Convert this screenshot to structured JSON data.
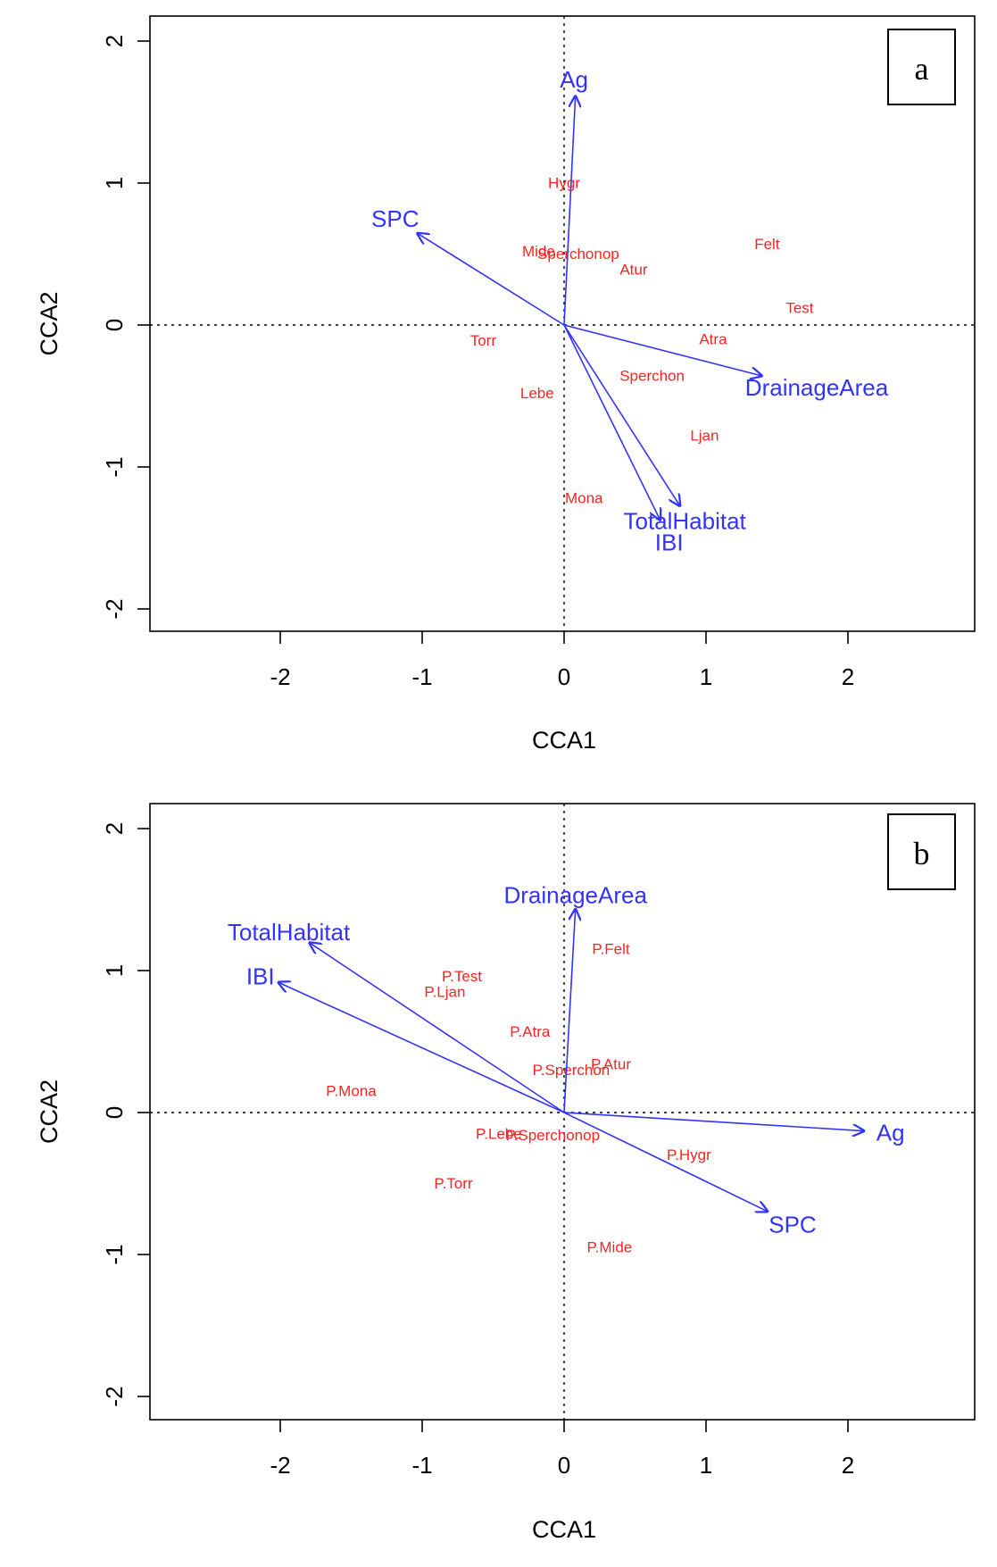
{
  "figure": {
    "background": "#ffffff"
  },
  "colors": {
    "species": "#ff2222",
    "vectors": "#3333ff",
    "axes": "#000000"
  },
  "chart_data": [
    {
      "type": "scatter",
      "subtype": "cca-biplot",
      "panel_label": "a",
      "xlabel": "CCA1",
      "ylabel": "CCA2",
      "xticks": [
        -2,
        -1,
        0,
        1,
        2
      ],
      "yticks": [
        -2,
        -1,
        0,
        1,
        2
      ],
      "xlim": [
        -2.9,
        2.9
      ],
      "ylim": [
        -2.2,
        2.2
      ],
      "zero_lines": true,
      "species": [
        {
          "label": "Hygr",
          "x": 0.0,
          "y": 1.0
        },
        {
          "label": "Mide",
          "x": -0.18,
          "y": 0.52
        },
        {
          "label": "Sperchonop",
          "x": 0.1,
          "y": 0.5
        },
        {
          "label": "Atur",
          "x": 0.49,
          "y": 0.39
        },
        {
          "label": "Felt",
          "x": 1.43,
          "y": 0.57
        },
        {
          "label": "Test",
          "x": 1.66,
          "y": 0.12
        },
        {
          "label": "Torr",
          "x": -0.57,
          "y": -0.11
        },
        {
          "label": "Atra",
          "x": 1.05,
          "y": -0.1
        },
        {
          "label": "Sperchon",
          "x": 0.62,
          "y": -0.36
        },
        {
          "label": "Lebe",
          "x": -0.19,
          "y": -0.48
        },
        {
          "label": "Ljan",
          "x": 0.99,
          "y": -0.78
        },
        {
          "label": "Mona",
          "x": 0.14,
          "y": -1.22
        }
      ],
      "vectors": [
        {
          "label": "Ag",
          "x": 0.08,
          "y": 1.62,
          "lx": 0.07,
          "ly": 1.73
        },
        {
          "label": "SPC",
          "x": -1.04,
          "y": 0.65,
          "lx": -1.19,
          "ly": 0.75
        },
        {
          "label": "DrainageArea",
          "x": 1.4,
          "y": -0.36,
          "lx": 1.78,
          "ly": -0.44
        },
        {
          "label": "TotalHabitat",
          "x": 0.82,
          "y": -1.28,
          "lx": 0.85,
          "ly": -1.38
        },
        {
          "label": "IBI",
          "x": 0.68,
          "y": -1.38,
          "lx": 0.74,
          "ly": -1.53
        }
      ]
    },
    {
      "type": "scatter",
      "subtype": "cca-biplot",
      "panel_label": "b",
      "xlabel": "CCA1",
      "ylabel": "CCA2",
      "xticks": [
        -2,
        -1,
        0,
        1,
        2
      ],
      "yticks": [
        -2,
        -1,
        0,
        1,
        2
      ],
      "xlim": [
        -2.9,
        2.9
      ],
      "ylim": [
        -2.2,
        2.2
      ],
      "zero_lines": true,
      "species": [
        {
          "label": "P.Felt",
          "x": 0.33,
          "y": 1.15
        },
        {
          "label": "P.Test",
          "x": -0.72,
          "y": 0.96
        },
        {
          "label": "P.Ljan",
          "x": -0.84,
          "y": 0.85
        },
        {
          "label": "P.Atra",
          "x": -0.24,
          "y": 0.57
        },
        {
          "label": "P.Atur",
          "x": 0.33,
          "y": 0.34
        },
        {
          "label": "P.Sperchon",
          "x": 0.05,
          "y": 0.3
        },
        {
          "label": "P.Mona",
          "x": -1.5,
          "y": 0.15
        },
        {
          "label": "P.Lebe",
          "x": -0.46,
          "y": -0.15
        },
        {
          "label": "P.Sperchonop",
          "x": -0.08,
          "y": -0.16
        },
        {
          "label": "P.Hygr",
          "x": 0.88,
          "y": -0.3
        },
        {
          "label": "P.Torr",
          "x": -0.78,
          "y": -0.5
        },
        {
          "label": "P.Mide",
          "x": 0.32,
          "y": -0.95
        }
      ],
      "vectors": [
        {
          "label": "DrainageArea",
          "x": 0.08,
          "y": 1.44,
          "lx": 0.08,
          "ly": 1.53
        },
        {
          "label": "TotalHabitat",
          "x": -1.8,
          "y": 1.2,
          "lx": -1.94,
          "ly": 1.27
        },
        {
          "label": "IBI",
          "x": -2.02,
          "y": 0.92,
          "lx": -2.14,
          "ly": 0.96
        },
        {
          "label": "Ag",
          "x": 2.12,
          "y": -0.13,
          "lx": 2.3,
          "ly": -0.14
        },
        {
          "label": "SPC",
          "x": 1.44,
          "y": -0.7,
          "lx": 1.61,
          "ly": -0.79
        }
      ]
    }
  ]
}
